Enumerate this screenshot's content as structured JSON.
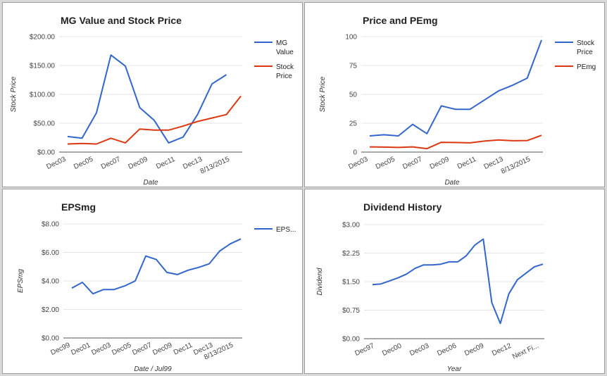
{
  "chart_data": [
    {
      "type": "line",
      "title": "MG Value and Stock Price",
      "xlabel": "Date",
      "ylabel": "Stock Price",
      "ylim": [
        0,
        200
      ],
      "yticks": [
        "$0.00",
        "$50.00",
        "$100.00",
        "$150.00",
        "$200.00"
      ],
      "xticks": [
        "Dec03",
        "Dec05",
        "Dec07",
        "Dec09",
        "Dec11",
        "Dec13",
        "8/13/2015"
      ],
      "legend_position": "right",
      "grid": true,
      "series": [
        {
          "name": "MG Value",
          "color": "#3366cc",
          "values": [
            27,
            24,
            68,
            168,
            149,
            77,
            55,
            16,
            26,
            65,
            118,
            134,
            null
          ]
        },
        {
          "name": "Stock Price",
          "color": "#dc3912",
          "values": [
            14,
            15,
            14,
            24,
            16,
            40,
            38,
            38,
            45,
            53,
            59,
            65,
            97
          ]
        }
      ]
    },
    {
      "type": "line",
      "title": "Price and PEmg",
      "xlabel": "Date",
      "ylabel": "Stock Price",
      "ylim": [
        0,
        100
      ],
      "yticks": [
        "0",
        "25",
        "50",
        "75",
        "100"
      ],
      "xticks": [
        "Dec03",
        "Dec05",
        "Dec07",
        "Dec09",
        "Dec11",
        "Dec13",
        "8/13/2015"
      ],
      "legend_position": "right",
      "grid": true,
      "series": [
        {
          "name": "Stock Price",
          "color": "#3366cc",
          "values": [
            14,
            15,
            14,
            24,
            16,
            40,
            37,
            37,
            45,
            53,
            58,
            64,
            97
          ]
        },
        {
          "name": "PEmg",
          "color": "#dc3912",
          "values": [
            4.5,
            4.3,
            4,
            4.5,
            3,
            8.5,
            8.3,
            8,
            9.5,
            10.5,
            9.8,
            10,
            14.5
          ]
        }
      ]
    },
    {
      "type": "line",
      "title": "EPSmg",
      "xlabel": "Date / Jul99",
      "ylabel": "EPSmg",
      "ylim": [
        0,
        8
      ],
      "yticks": [
        "$0.00",
        "$2.00",
        "$4.00",
        "$6.00",
        "$8.00"
      ],
      "xticks": [
        "Dec99",
        "Dec01",
        "Dec03",
        "Dec05",
        "Dec07",
        "Dec09",
        "Dec11",
        "Dec13",
        "8/13/2015"
      ],
      "legend_position": "right",
      "grid": true,
      "series": [
        {
          "name": "EPS...",
          "color": "#3366cc",
          "values": [
            3.5,
            3.9,
            3.1,
            3.4,
            3.4,
            3.65,
            4.0,
            5.75,
            5.5,
            4.6,
            4.45,
            4.75,
            4.95,
            5.2,
            6.1,
            6.6,
            6.95
          ]
        }
      ]
    },
    {
      "type": "line",
      "title": "Dividend History",
      "xlabel": "Year",
      "ylabel": "Dividend",
      "ylim": [
        0,
        3
      ],
      "yticks": [
        "$0.00",
        "$0.75",
        "$1.50",
        "$2.25",
        "$3.00"
      ],
      "xticks": [
        "Dec97",
        "Dec00",
        "Dec03",
        "Dec06",
        "Dec09",
        "Dec12",
        "Next Fi..."
      ],
      "legend_position": "none",
      "grid": true,
      "series": [
        {
          "color": "#3366cc",
          "values": [
            1.42,
            1.44,
            1.52,
            1.6,
            1.7,
            1.85,
            1.94,
            1.94,
            1.96,
            2.02,
            2.02,
            2.18,
            2.46,
            2.62,
            0.95,
            0.4,
            1.18,
            1.55,
            1.72,
            1.89,
            1.96
          ]
        }
      ]
    }
  ]
}
